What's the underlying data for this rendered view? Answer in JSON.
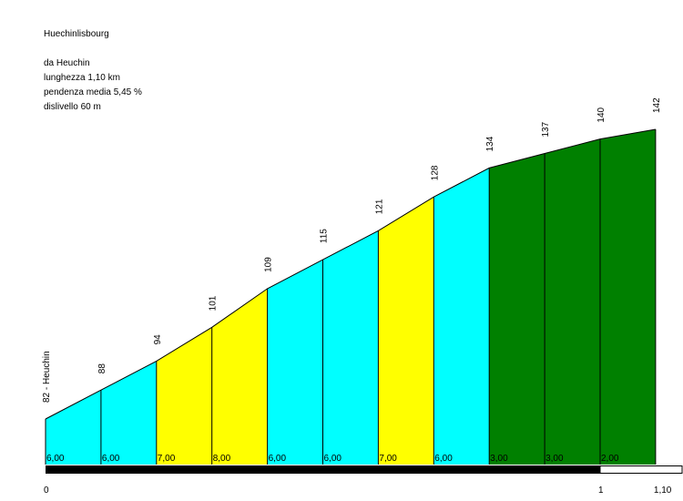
{
  "info": {
    "title": "Huechinlisbourg",
    "from": "da Heuchin",
    "length": "lunghezza 1,10 km",
    "gradient": "pendenza media 5,45 %",
    "climb": "dislivello 60 m"
  },
  "chart_data": {
    "type": "area",
    "title": "Huechinlisbourg",
    "x_km": [
      0,
      0.1,
      0.2,
      0.3,
      0.4,
      0.5,
      0.6,
      0.7,
      0.8,
      0.9,
      1.0,
      1.1
    ],
    "altitudes": [
      82,
      88,
      94,
      101,
      109,
      115,
      121,
      128,
      134,
      137,
      140,
      142
    ],
    "altitude_labels": [
      "82 - Heuchin",
      "88",
      "94",
      "101",
      "109",
      "115",
      "121",
      "128",
      "134",
      "137",
      "140",
      "142"
    ],
    "segment_gradients": [
      "6,00",
      "6,00",
      "7,00",
      "8,00",
      "6,00",
      "6,00",
      "7,00",
      "6,00",
      "3,00",
      "3,00",
      "2,00"
    ],
    "x_tick_labels": [
      {
        "km": 0,
        "label": "0"
      },
      {
        "km": 1.0,
        "label": "1"
      },
      {
        "km": 1.1,
        "label": "1,10"
      }
    ],
    "colors": {
      "gradient_2_4": "#008000",
      "gradient_5_6": "#00ffff",
      "gradient_7_8": "#ffff00",
      "outline": "#000000",
      "km_bar": "#000000"
    }
  }
}
